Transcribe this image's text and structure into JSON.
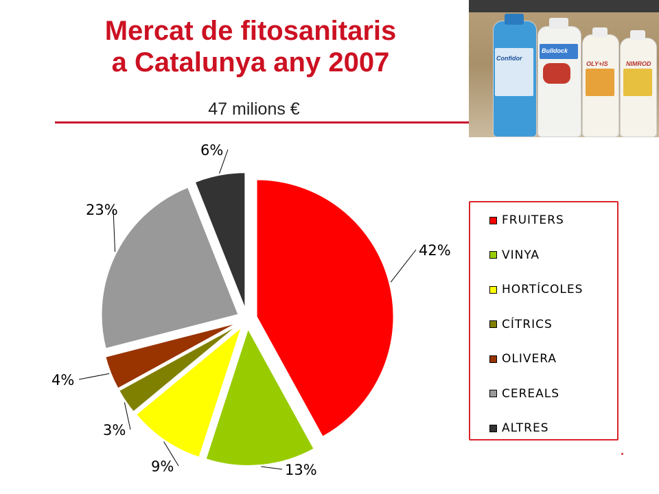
{
  "slide": {
    "title_line1": "Mercat de fitosanitaris",
    "title_line2": "a Catalunya any 2007",
    "subtitle": "47 milions €",
    "accent_color": "#c8102e"
  },
  "photo": {
    "bottle_labels": [
      "Confidor",
      "Bulldock",
      "OLY+IS",
      "NIMROD"
    ]
  },
  "chart_data": {
    "type": "pie",
    "title": "",
    "categories": [
      "FRUITERS",
      "VINYA",
      "HORTÍCOLES",
      "CÍTRICS",
      "OLIVERA",
      "CEREALS",
      "ALTRES"
    ],
    "values": [
      42,
      13,
      9,
      3,
      4,
      23,
      6
    ],
    "labels": [
      "42%",
      "13%",
      "9%",
      "3%",
      "4%",
      "23%",
      "6%"
    ],
    "colors": [
      "#ff0000",
      "#99cc00",
      "#ffff00",
      "#808000",
      "#993300",
      "#999999",
      "#333333"
    ],
    "exploded": true,
    "legend_position": "right"
  }
}
